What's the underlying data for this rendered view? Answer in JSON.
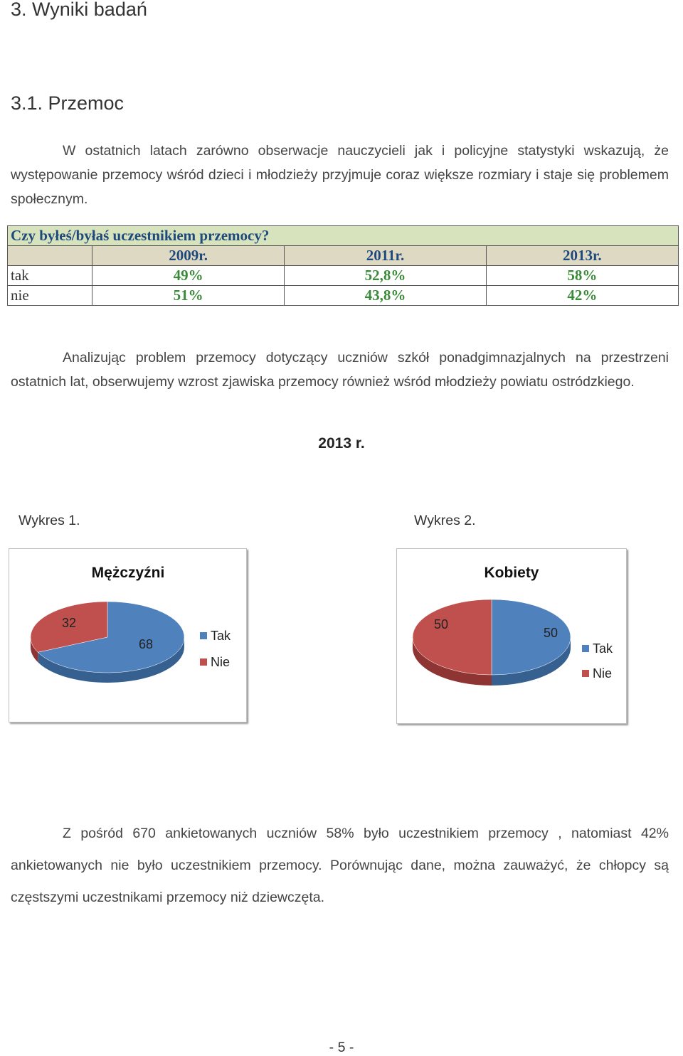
{
  "headings": {
    "section": "3. Wyniki badań",
    "subsection": "3.1. Przemoc"
  },
  "paragraphs": {
    "intro": "W ostatnich latach zarówno obserwacje nauczycieli jak i policyjne statystyki wskazują, że występowanie przemocy wśród dzieci i młodzieży przyjmuje coraz większe rozmiary i staje się problemem społecznym.",
    "analysis": "Analizując problem przemocy dotyczący uczniów szkół ponadgimnazjalnych na przestrzeni ostatnich lat, obserwujemy wzrost zjawiska przemocy również wśród młodzieży powiatu ostródzkiego.",
    "summary": "Z pośród 670 ankietowanych uczniów 58%  było uczestnikiem przemocy , natomiast 42% ankietowanych nie było uczestnikiem przemocy. Porównując dane, można zauważyć, że chłopcy są częstszymi  uczestnikami przemocy niż dziewczęta."
  },
  "survey_table": {
    "question": "Czy byłeś/byłaś uczestnikiem przemocy?",
    "years": [
      "2009r.",
      "2011r.",
      "2013r."
    ],
    "rows": [
      {
        "label": "tak",
        "values": [
          "49%",
          "52,8%",
          "58%"
        ]
      },
      {
        "label": "nie",
        "values": [
          "51%",
          "43,8%",
          "42%"
        ]
      }
    ]
  },
  "charts_year_caption": "2013 r.",
  "chart_captions": [
    "Wykres 1.",
    "Wykres 2."
  ],
  "colors": {
    "tak": "#4f81bd",
    "nie": "#c0504d",
    "table_question_bg": "#d6e3bc",
    "table_header_bg": "#ddd9c3",
    "table_value_text": "#3a8a3a"
  },
  "chart_data": [
    {
      "type": "pie",
      "title": "Mężczyźni",
      "categories": [
        "Tak",
        "Nie"
      ],
      "values": [
        68,
        32
      ],
      "legend": "right",
      "data_labels": [
        "68",
        "32"
      ]
    },
    {
      "type": "pie",
      "title": "Kobiety",
      "categories": [
        "Tak",
        "Nie"
      ],
      "values": [
        50,
        50
      ],
      "legend": "right",
      "data_labels": [
        "50",
        "50"
      ]
    }
  ],
  "footer": {
    "page": "- 5 -"
  }
}
